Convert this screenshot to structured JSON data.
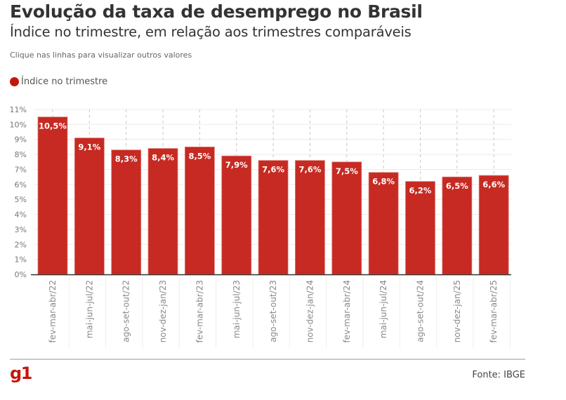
{
  "header": {
    "title": "Evolução da taxa de desemprego no Brasil",
    "subtitle": "Índice no trimestre, em relação aos trimestres comparáveis",
    "hint": "Clique nas linhas para visualizar outros valores"
  },
  "legend": {
    "label": "Índice no trimestre",
    "color": "#c4170c"
  },
  "footer": {
    "logo": "g1",
    "source": "Fonte: IBGE",
    "logo_color": "#c4170c"
  },
  "chart_data": {
    "type": "bar",
    "title": "Evolução da taxa de desemprego no Brasil",
    "subtitle": "Índice no trimestre, em relação aos trimestres comparáveis",
    "xlabel": "",
    "ylabel": "",
    "ylim": [
      0,
      11
    ],
    "yticks": [
      "0%",
      "1%",
      "2%",
      "3%",
      "4%",
      "5%",
      "6%",
      "7%",
      "8%",
      "9%",
      "10%",
      "11%"
    ],
    "grid": true,
    "legend_position": "top-left",
    "categories": [
      "fev-mar-abr/22",
      "mai-jun-jul/22",
      "ago-set-out/22",
      "nov-dez-jan/23",
      "fev-mar-abr/23",
      "mai-jun-jul/23",
      "ago-set-out/23",
      "nov-dez-jan/24",
      "fev-mar-abr/24",
      "mai-jun-jul/24",
      "ago-set-out/24",
      "nov-dez-jan/25",
      "fev-mar-abr/25"
    ],
    "series": [
      {
        "name": "Índice no trimestre",
        "color": "#c62a22",
        "values": [
          10.5,
          9.1,
          8.3,
          8.4,
          8.5,
          7.9,
          7.6,
          7.6,
          7.5,
          6.8,
          6.2,
          6.5,
          6.6
        ],
        "labels": [
          "10,5%",
          "9,1%",
          "8,3%",
          "8,4%",
          "8,5%",
          "7,9%",
          "7,6%",
          "7,6%",
          "7,5%",
          "6,8%",
          "6,2%",
          "6,5%",
          "6,6%"
        ]
      }
    ]
  }
}
